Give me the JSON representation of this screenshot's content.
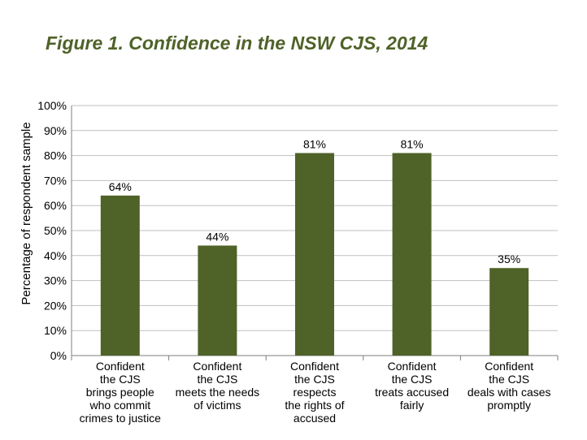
{
  "title": "Figure 1. Confidence in the NSW CJS, 2014",
  "colors": {
    "title": "#4f6228",
    "bar": "#4f6228",
    "grid": "#bfbfbf",
    "axis": "#7f7f7f"
  },
  "chart_data": {
    "type": "bar",
    "ylabel": "Percentage of respondent sample",
    "ylim": [
      0,
      100
    ],
    "yticks": [
      "0%",
      "10%",
      "20%",
      "30%",
      "40%",
      "50%",
      "60%",
      "70%",
      "80%",
      "90%",
      "100%"
    ],
    "grid": true,
    "categories": [
      [
        "Confident",
        "the CJS",
        "brings people",
        "who commit",
        "crimes to justice"
      ],
      [
        "Confident",
        "the CJS",
        "meets the needs",
        "of victims"
      ],
      [
        "Confident",
        "the CJS",
        "respects",
        "the rights of",
        "accused"
      ],
      [
        "Confident",
        "the CJS",
        "treats accused",
        "fairly"
      ],
      [
        "Confident",
        "the CJS",
        "deals with cases",
        "promptly"
      ]
    ],
    "values": [
      64,
      44,
      81,
      81,
      35
    ],
    "data_labels": [
      "64%",
      "44%",
      "81%",
      "81%",
      "35%"
    ]
  }
}
